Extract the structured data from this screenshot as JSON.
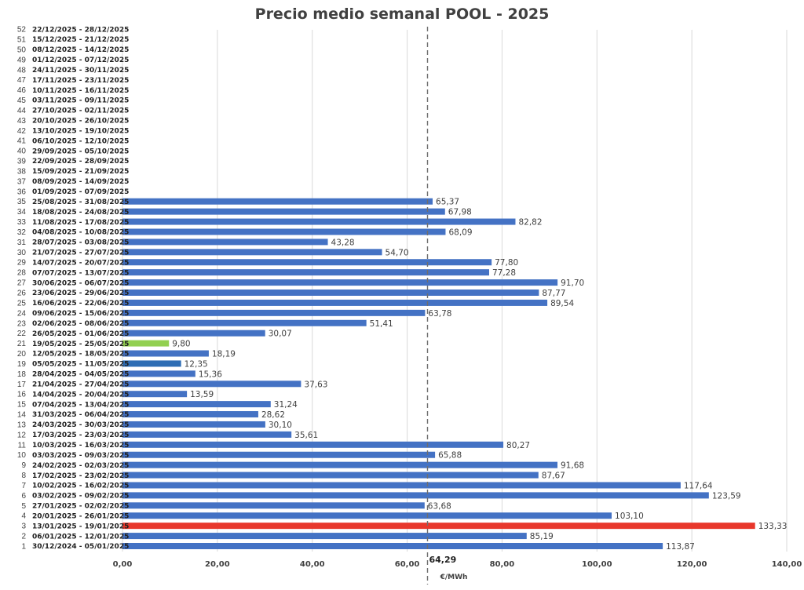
{
  "chart_data": {
    "type": "bar",
    "orientation": "horizontal",
    "title": "Precio medio semanal POOL - 2025",
    "xlabel": "€/MWh",
    "xlim": [
      0,
      140
    ],
    "x_ticks": [
      "0,00",
      "20,00",
      "40,00",
      "60,00",
      "80,00",
      "100,00",
      "120,00",
      "140,00"
    ],
    "grid": true,
    "average": {
      "value": 64.29,
      "label": "64,29"
    },
    "colors": {
      "default": "#4472c4",
      "max": "#e8372b",
      "min": "#92d050",
      "highlight": "#2e6db4"
    },
    "weeks": [
      {
        "n": "1",
        "range": "30/12/2024 - 05/01/2025",
        "value": 113.87,
        "label": "113,87",
        "color": "default"
      },
      {
        "n": "2",
        "range": "06/01/2025 - 12/01/2025",
        "value": 85.19,
        "label": "85,19",
        "color": "default"
      },
      {
        "n": "3",
        "range": "13/01/2025 - 19/01/2025",
        "value": 133.33,
        "label": "133,33",
        "color": "max"
      },
      {
        "n": "4",
        "range": "20/01/2025 - 26/01/2025",
        "value": 103.1,
        "label": "103,10",
        "color": "default"
      },
      {
        "n": "5",
        "range": "27/01/2025 - 02/02/2025",
        "value": 63.68,
        "label": "63,68",
        "color": "default"
      },
      {
        "n": "6",
        "range": "03/02/2025 - 09/02/2025",
        "value": 123.59,
        "label": "123,59",
        "color": "default"
      },
      {
        "n": "7",
        "range": "10/02/2025 - 16/02/2025",
        "value": 117.64,
        "label": "117,64",
        "color": "default"
      },
      {
        "n": "8",
        "range": "17/02/2025 - 23/02/2025",
        "value": 87.67,
        "label": "87,67",
        "color": "default"
      },
      {
        "n": "9",
        "range": "24/02/2025 - 02/03/2025",
        "value": 91.68,
        "label": "91,68",
        "color": "default"
      },
      {
        "n": "10",
        "range": "03/03/2025 - 09/03/2025",
        "value": 65.88,
        "label": "65,88",
        "color": "default"
      },
      {
        "n": "11",
        "range": "10/03/2025 - 16/03/2025",
        "value": 80.27,
        "label": "80,27",
        "color": "default"
      },
      {
        "n": "12",
        "range": "17/03/2025 - 23/03/2025",
        "value": 35.61,
        "label": "35,61",
        "color": "default"
      },
      {
        "n": "13",
        "range": "24/03/2025 - 30/03/2025",
        "value": 30.1,
        "label": "30,10",
        "color": "default"
      },
      {
        "n": "14",
        "range": "31/03/2025 - 06/04/2025",
        "value": 28.62,
        "label": "28,62",
        "color": "default"
      },
      {
        "n": "15",
        "range": "07/04/2025 - 13/04/2025",
        "value": 31.24,
        "label": "31,24",
        "color": "default"
      },
      {
        "n": "16",
        "range": "14/04/2025 - 20/04/2025",
        "value": 13.59,
        "label": "13,59",
        "color": "default"
      },
      {
        "n": "17",
        "range": "21/04/2025 - 27/04/2025",
        "value": 37.63,
        "label": "37,63",
        "color": "default"
      },
      {
        "n": "18",
        "range": "28/04/2025 - 04/05/2025",
        "value": 15.36,
        "label": "15,36",
        "color": "default"
      },
      {
        "n": "19",
        "range": "05/05/2025 - 11/05/2025",
        "value": 12.35,
        "label": "12,35",
        "color": "highlight"
      },
      {
        "n": "20",
        "range": "12/05/2025 - 18/05/2025",
        "value": 18.19,
        "label": "18,19",
        "color": "default"
      },
      {
        "n": "21",
        "range": "19/05/2025 - 25/05/2025",
        "value": 9.8,
        "label": "9,80",
        "color": "min"
      },
      {
        "n": "22",
        "range": "26/05/2025 - 01/06/2025",
        "value": 30.07,
        "label": "30,07",
        "color": "default"
      },
      {
        "n": "23",
        "range": "02/06/2025 - 08/06/2025",
        "value": 51.41,
        "label": "51,41",
        "color": "default"
      },
      {
        "n": "24",
        "range": "09/06/2025 - 15/06/2025",
        "value": 63.78,
        "label": "63,78",
        "color": "default"
      },
      {
        "n": "25",
        "range": "16/06/2025 - 22/06/2025",
        "value": 89.54,
        "label": "89,54",
        "color": "default"
      },
      {
        "n": "26",
        "range": "23/06/2025 - 29/06/2025",
        "value": 87.77,
        "label": "87,77",
        "color": "default"
      },
      {
        "n": "27",
        "range": "30/06/2025 - 06/07/2025",
        "value": 91.7,
        "label": "91,70",
        "color": "default"
      },
      {
        "n": "28",
        "range": "07/07/2025 - 13/07/2025",
        "value": 77.28,
        "label": "77,28",
        "color": "default"
      },
      {
        "n": "29",
        "range": "14/07/2025 - 20/07/2025",
        "value": 77.8,
        "label": "77,80",
        "color": "default"
      },
      {
        "n": "30",
        "range": "21/07/2025 - 27/07/2025",
        "value": 54.7,
        "label": "54,70",
        "color": "default"
      },
      {
        "n": "31",
        "range": "28/07/2025 - 03/08/2025",
        "value": 43.28,
        "label": "43,28",
        "color": "default"
      },
      {
        "n": "32",
        "range": "04/08/2025 - 10/08/2025",
        "value": 68.09,
        "label": "68,09",
        "color": "default"
      },
      {
        "n": "33",
        "range": "11/08/2025 - 17/08/2025",
        "value": 82.82,
        "label": "82,82",
        "color": "default"
      },
      {
        "n": "34",
        "range": "18/08/2025 - 24/08/2025",
        "value": 67.98,
        "label": "67,98",
        "color": "default"
      },
      {
        "n": "35",
        "range": "25/08/2025 - 31/08/2025",
        "value": 65.37,
        "label": "65,37",
        "color": "default"
      },
      {
        "n": "36",
        "range": "01/09/2025 - 07/09/2025",
        "value": null,
        "label": "",
        "color": "default"
      },
      {
        "n": "37",
        "range": "08/09/2025 - 14/09/2025",
        "value": null,
        "label": "",
        "color": "default"
      },
      {
        "n": "38",
        "range": "15/09/2025 - 21/09/2025",
        "value": null,
        "label": "",
        "color": "default"
      },
      {
        "n": "39",
        "range": "22/09/2025 - 28/09/2025",
        "value": null,
        "label": "",
        "color": "default"
      },
      {
        "n": "40",
        "range": "29/09/2025 - 05/10/2025",
        "value": null,
        "label": "",
        "color": "default"
      },
      {
        "n": "41",
        "range": "06/10/2025 - 12/10/2025",
        "value": null,
        "label": "",
        "color": "default"
      },
      {
        "n": "42",
        "range": "13/10/2025 - 19/10/2025",
        "value": null,
        "label": "",
        "color": "default"
      },
      {
        "n": "43",
        "range": "20/10/2025 - 26/10/2025",
        "value": null,
        "label": "",
        "color": "default"
      },
      {
        "n": "44",
        "range": "27/10/2025 - 02/11/2025",
        "value": null,
        "label": "",
        "color": "default"
      },
      {
        "n": "45",
        "range": "03/11/2025 - 09/11/2025",
        "value": null,
        "label": "",
        "color": "default"
      },
      {
        "n": "46",
        "range": "10/11/2025 - 16/11/2025",
        "value": null,
        "label": "",
        "color": "default"
      },
      {
        "n": "47",
        "range": "17/11/2025 - 23/11/2025",
        "value": null,
        "label": "",
        "color": "default"
      },
      {
        "n": "48",
        "range": "24/11/2025 - 30/11/2025",
        "value": null,
        "label": "",
        "color": "default"
      },
      {
        "n": "49",
        "range": "01/12/2025 - 07/12/2025",
        "value": null,
        "label": "",
        "color": "default"
      },
      {
        "n": "50",
        "range": "08/12/2025 - 14/12/2025",
        "value": null,
        "label": "",
        "color": "default"
      },
      {
        "n": "51",
        "range": "15/12/2025 - 21/12/2025",
        "value": null,
        "label": "",
        "color": "default"
      },
      {
        "n": "52",
        "range": "22/12/2025 - 28/12/2025",
        "value": null,
        "label": "",
        "color": "default"
      }
    ]
  }
}
